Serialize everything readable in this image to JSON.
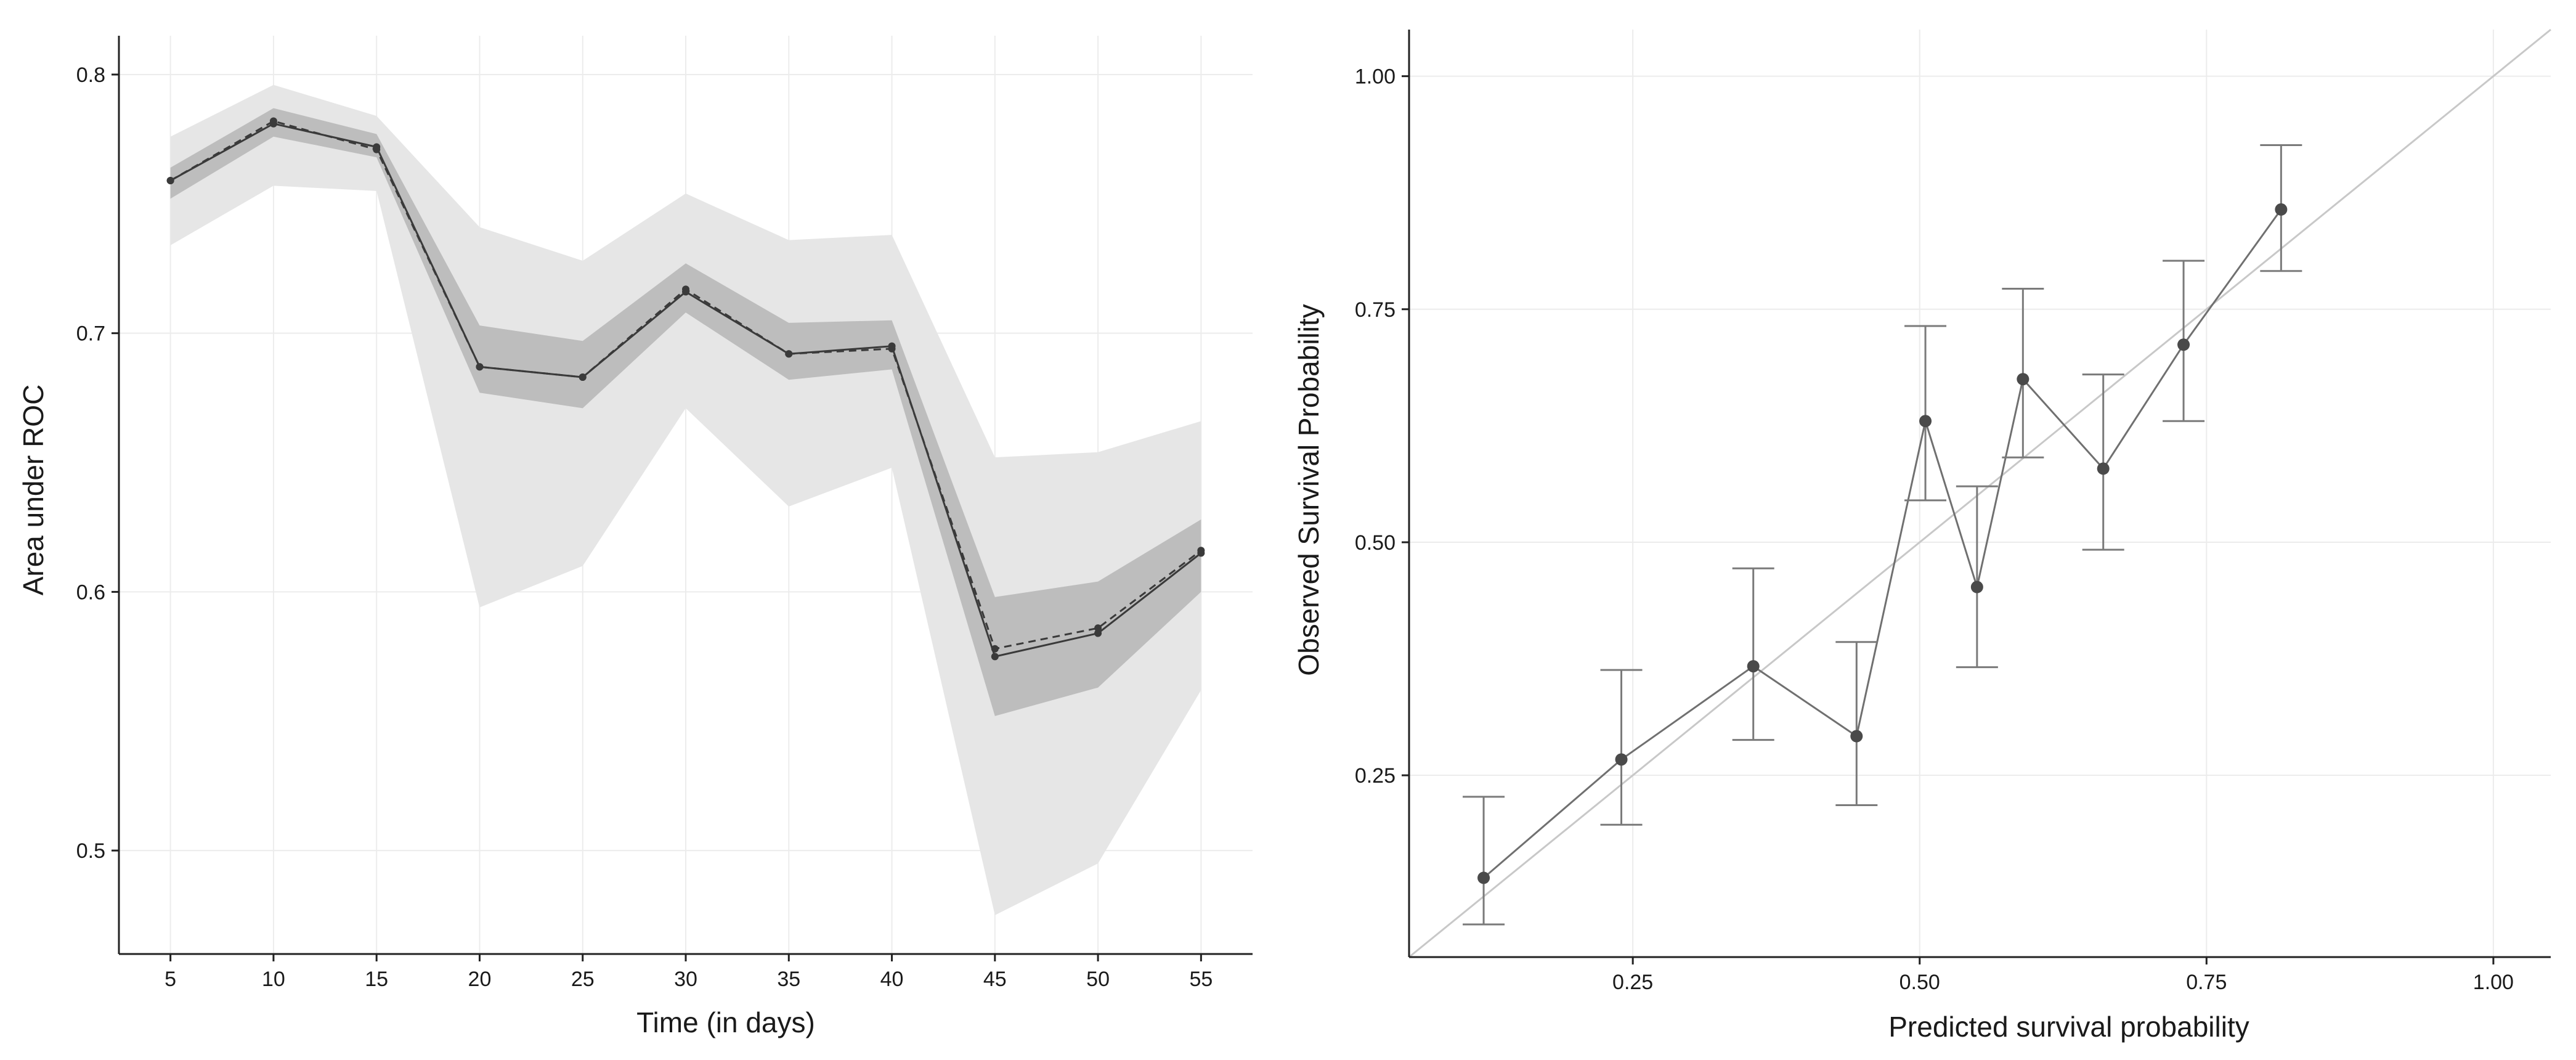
{
  "chart_data": [
    {
      "type": "line",
      "title": "",
      "xlabel": "Time (in days)",
      "ylabel": "Area under ROC",
      "xlim": [
        2.5,
        57.5
      ],
      "ylim": [
        0.46,
        0.815
      ],
      "x": [
        5,
        10,
        15,
        20,
        25,
        30,
        35,
        40,
        45,
        50,
        55
      ],
      "x_tick_labels": [
        "5",
        "10",
        "15",
        "20",
        "25",
        "30",
        "35",
        "40",
        "45",
        "50",
        "55"
      ],
      "y_ticks": [
        0.5,
        0.6,
        0.7,
        0.8
      ],
      "y_tick_labels": [
        "0.5",
        "0.6",
        "0.7",
        "0.8"
      ],
      "grid": true,
      "series": [
        {
          "name": "solid",
          "style": "solid",
          "values": [
            0.759,
            0.781,
            0.772,
            0.687,
            0.683,
            0.716,
            0.692,
            0.695,
            0.575,
            0.584,
            0.615
          ]
        },
        {
          "name": "dashed",
          "style": "dashed",
          "values": [
            0.759,
            0.782,
            0.771,
            0.687,
            0.683,
            0.717,
            0.692,
            0.694,
            0.578,
            0.586,
            0.616
          ]
        }
      ],
      "bands": [
        {
          "name": "outer",
          "lower": [
            0.734,
            0.757,
            0.755,
            0.594,
            0.61,
            0.671,
            0.633,
            0.648,
            0.475,
            0.495,
            0.562
          ],
          "upper": [
            0.776,
            0.796,
            0.784,
            0.741,
            0.728,
            0.754,
            0.736,
            0.738,
            0.652,
            0.654,
            0.666
          ]
        },
        {
          "name": "inner",
          "lower": [
            0.752,
            0.776,
            0.768,
            0.677,
            0.671,
            0.708,
            0.682,
            0.686,
            0.552,
            0.563,
            0.6
          ],
          "upper": [
            0.764,
            0.787,
            0.777,
            0.703,
            0.697,
            0.727,
            0.704,
            0.705,
            0.598,
            0.604,
            0.628
          ]
        }
      ]
    },
    {
      "type": "scatter",
      "title": "",
      "xlabel": "Predicted survival probability",
      "ylabel": "Observed Survival Probability",
      "xlim": [
        0.055,
        1.05
      ],
      "ylim": [
        0.055,
        1.05
      ],
      "x_ticks": [
        0.25,
        0.5,
        0.75,
        1.0
      ],
      "x_tick_labels": [
        "0.25",
        "0.50",
        "0.75",
        "1.00"
      ],
      "y_ticks": [
        0.25,
        0.5,
        0.75,
        1.0
      ],
      "y_tick_labels": [
        "0.25",
        "0.50",
        "0.75",
        "1.00"
      ],
      "grid": true,
      "reference_line": "identity",
      "points": [
        {
          "x": 0.12,
          "y": 0.14,
          "lower": 0.09,
          "upper": 0.227
        },
        {
          "x": 0.24,
          "y": 0.267,
          "lower": 0.197,
          "upper": 0.363
        },
        {
          "x": 0.355,
          "y": 0.367,
          "lower": 0.288,
          "upper": 0.472
        },
        {
          "x": 0.445,
          "y": 0.292,
          "lower": 0.218,
          "upper": 0.393
        },
        {
          "x": 0.505,
          "y": 0.63,
          "lower": 0.545,
          "upper": 0.732
        },
        {
          "x": 0.55,
          "y": 0.452,
          "lower": 0.366,
          "upper": 0.56
        },
        {
          "x": 0.59,
          "y": 0.675,
          "lower": 0.591,
          "upper": 0.772
        },
        {
          "x": 0.66,
          "y": 0.579,
          "lower": 0.492,
          "upper": 0.68
        },
        {
          "x": 0.73,
          "y": 0.712,
          "lower": 0.63,
          "upper": 0.802
        },
        {
          "x": 0.815,
          "y": 0.857,
          "lower": 0.791,
          "upper": 0.926
        }
      ]
    }
  ]
}
